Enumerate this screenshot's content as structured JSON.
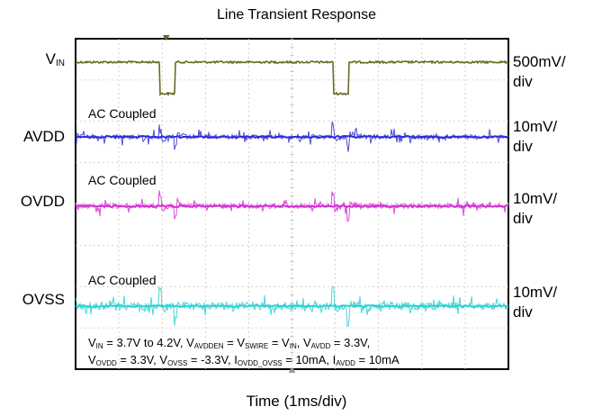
{
  "chart_data": {
    "type": "line",
    "title": "Line Transient Response",
    "xlabel": "Time (1ms/div)",
    "time_per_div_ms": 1,
    "grid": true,
    "channels": [
      {
        "id": "vin",
        "label_main": "V",
        "label_sub": "IN",
        "scale": "500mV/",
        "scale_unit": "div",
        "color": "#6b6b22",
        "coupling": "",
        "events": [
          {
            "step_up_ms": 1.95,
            "step_down_ms": 2.3,
            "amplitude_mV": 500
          },
          {
            "step_up_ms": 5.95,
            "step_down_ms": 6.3,
            "amplitude_mV": 500
          }
        ]
      },
      {
        "id": "avdd",
        "label_main": "AVDD",
        "label_sub": "",
        "scale": "10mV/",
        "scale_unit": "div",
        "color": "#2b2bd6",
        "coupling": "AC Coupled"
      },
      {
        "id": "ovdd",
        "label_main": "OVDD",
        "label_sub": "",
        "scale": "10mV/",
        "scale_unit": "div",
        "color": "#d62bd6",
        "coupling": "AC Coupled"
      },
      {
        "id": "ovss",
        "label_main": "OVSS",
        "label_sub": "",
        "scale": "10mV/",
        "scale_unit": "div",
        "color": "#2bcfd0",
        "coupling": "AC Coupled"
      }
    ]
  },
  "conditions": {
    "line1": [
      {
        "t": "V"
      },
      {
        "s": "IN"
      },
      {
        "t": " = 3.7V to 4.2V, V"
      },
      {
        "s": "AVDDEN"
      },
      {
        "t": " = V"
      },
      {
        "s": "SWIRE"
      },
      {
        "t": " = V"
      },
      {
        "s": "IN"
      },
      {
        "t": ", V"
      },
      {
        "s": "AVDD"
      },
      {
        "t": " = 3.3V,"
      }
    ],
    "line2": [
      {
        "t": "V"
      },
      {
        "s": "OVDD"
      },
      {
        "t": " = 3.3V, V"
      },
      {
        "s": "OVSS"
      },
      {
        "t": " = -3.3V, I"
      },
      {
        "s": "OVDD_OVSS"
      },
      {
        "t": " = 10mA, I"
      },
      {
        "s": "AVDD"
      },
      {
        "t": " = 10mA"
      }
    ]
  }
}
